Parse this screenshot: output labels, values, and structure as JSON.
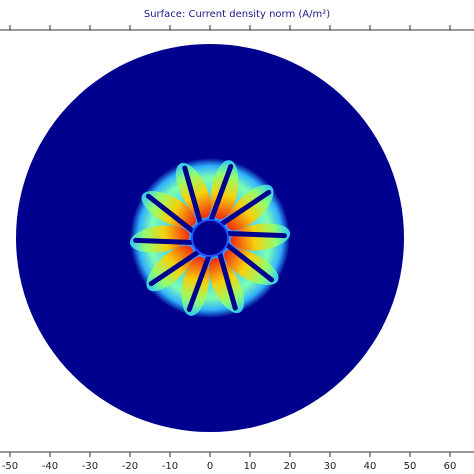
{
  "chart_data": {
    "type": "surface",
    "title": "Surface: Current density norm (A/m²)",
    "xlim": [
      -52.5,
      66
    ],
    "xticks": [
      -50,
      -40,
      -30,
      -20,
      -10,
      0,
      10,
      20,
      30,
      40,
      50,
      60
    ]
  }
}
